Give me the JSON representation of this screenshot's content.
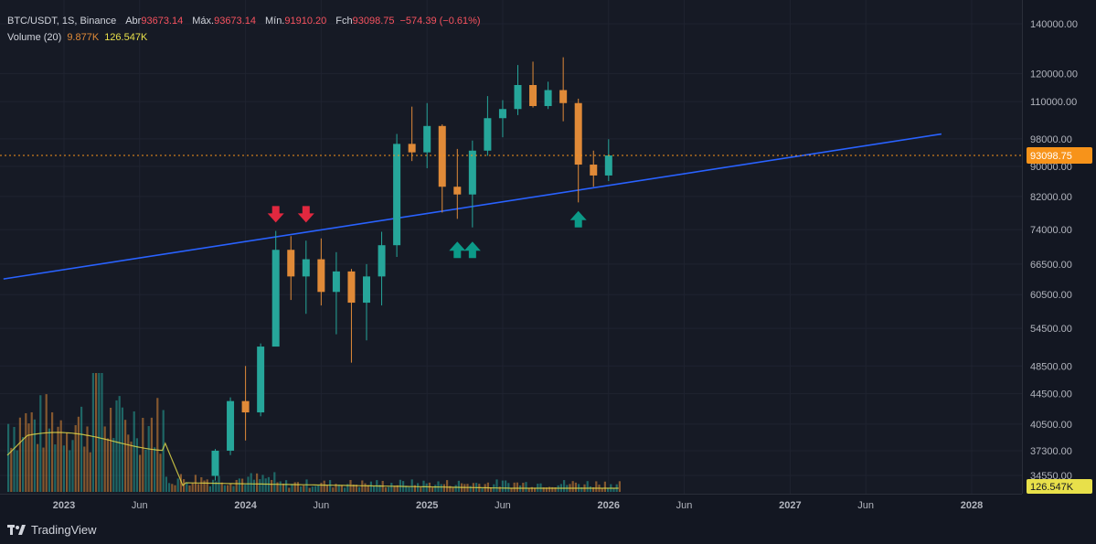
{
  "legend": {
    "symbol": "BTC/USDT, 1S, Binance",
    "open_label": "Abr",
    "open": "93673.14",
    "high_label": "Máx.",
    "high": "93673.14",
    "low_label": "Mín.",
    "low": "91910.20",
    "close_label": "Fch",
    "close": "93098.75",
    "change": "−574.39 (−0.61%)",
    "volume_label": "Volume (20)",
    "volume_value": "9.877K",
    "volume_ma": "126.547K"
  },
  "branding": {
    "name": "TradingView"
  },
  "colors": {
    "up": "#26a69a",
    "down": "#e08a38",
    "trendline": "#2962ff",
    "price_tag": "#f7931a",
    "volume_tag": "#e8e04a",
    "arrow_down": "#e2283f",
    "arrow_up": "#0c9a88"
  },
  "chart_data": {
    "type": "candlestick",
    "scale": "log",
    "price_ticks": [
      "140000.00",
      "120000.00",
      "110000.00",
      "98000.00",
      "90000.00",
      "82000.00",
      "74000.00",
      "66500.00",
      "60500.00",
      "54500.00",
      "48500.00",
      "44500.00",
      "40500.00",
      "37300.00",
      "34550.00"
    ],
    "time_ticks": [
      "2023",
      "Jun",
      "2024",
      "Jun",
      "2025",
      "Jun",
      "2026",
      "Jun",
      "2027",
      "Jun",
      "2028"
    ],
    "current_price": "93098.75",
    "current_volume_ma": "126.547K",
    "trendline": {
      "start": [
        "2022-09",
        63500
      ],
      "end": [
        "2027-11",
        99500
      ]
    },
    "candles_weekly_approx": [
      [
        "2023-11",
        34500,
        37500,
        34000,
        37300
      ],
      [
        "2023-12",
        37300,
        44000,
        36800,
        43500
      ],
      [
        "2024-01",
        43500,
        48500,
        38500,
        42000
      ],
      [
        "2024-02",
        42000,
        52000,
        41500,
        51500
      ],
      [
        "2024-03",
        51500,
        73700,
        60000,
        69500
      ],
      [
        "2024-04",
        69500,
        72500,
        59500,
        64000
      ],
      [
        "2024-05",
        64000,
        71500,
        57000,
        67500
      ],
      [
        "2024-06",
        67500,
        72000,
        58500,
        61000
      ],
      [
        "2024-07",
        61000,
        69000,
        53500,
        65000
      ],
      [
        "2024-08",
        65000,
        65500,
        49000,
        59000
      ],
      [
        "2024-09",
        59000,
        66500,
        52500,
        64000
      ],
      [
        "2024-10",
        64000,
        73500,
        58500,
        70500
      ],
      [
        "2024-11",
        70500,
        99500,
        68000,
        96500
      ],
      [
        "2024-12",
        96500,
        108300,
        91500,
        94000
      ],
      [
        "2025-01",
        94000,
        109500,
        89500,
        102000
      ],
      [
        "2025-02",
        102000,
        102500,
        78000,
        84500
      ],
      [
        "2025-03",
        84500,
        95000,
        76500,
        82500
      ],
      [
        "2025-04",
        82500,
        97500,
        74500,
        94500
      ],
      [
        "2025-05",
        94500,
        111900,
        93000,
        104500
      ],
      [
        "2025-06",
        104500,
        110500,
        98500,
        107500
      ],
      [
        "2025-07",
        107500,
        123200,
        105500,
        115800
      ],
      [
        "2025-08",
        115800,
        124500,
        108000,
        108500
      ],
      [
        "2025-09",
        108500,
        117000,
        107500,
        114000
      ],
      [
        "2025-10",
        114000,
        126200,
        103500,
        109500
      ],
      [
        "2025-11",
        109500,
        111000,
        80500,
        90500
      ],
      [
        "2025-12",
        90500,
        94500,
        84500,
        87500
      ],
      [
        "2026-01",
        87500,
        97900,
        86000,
        93098
      ]
    ],
    "annotations": [
      {
        "type": "arrow-down",
        "date": "2024-03",
        "price": 76500
      },
      {
        "type": "arrow-down",
        "date": "2024-05",
        "price": 76500
      },
      {
        "type": "arrow-up",
        "date": "2025-03",
        "price": 70500
      },
      {
        "type": "arrow-up",
        "date": "2025-04",
        "price": 70500
      },
      {
        "type": "arrow-up",
        "date": "2025-11",
        "price": 77500
      }
    ]
  }
}
